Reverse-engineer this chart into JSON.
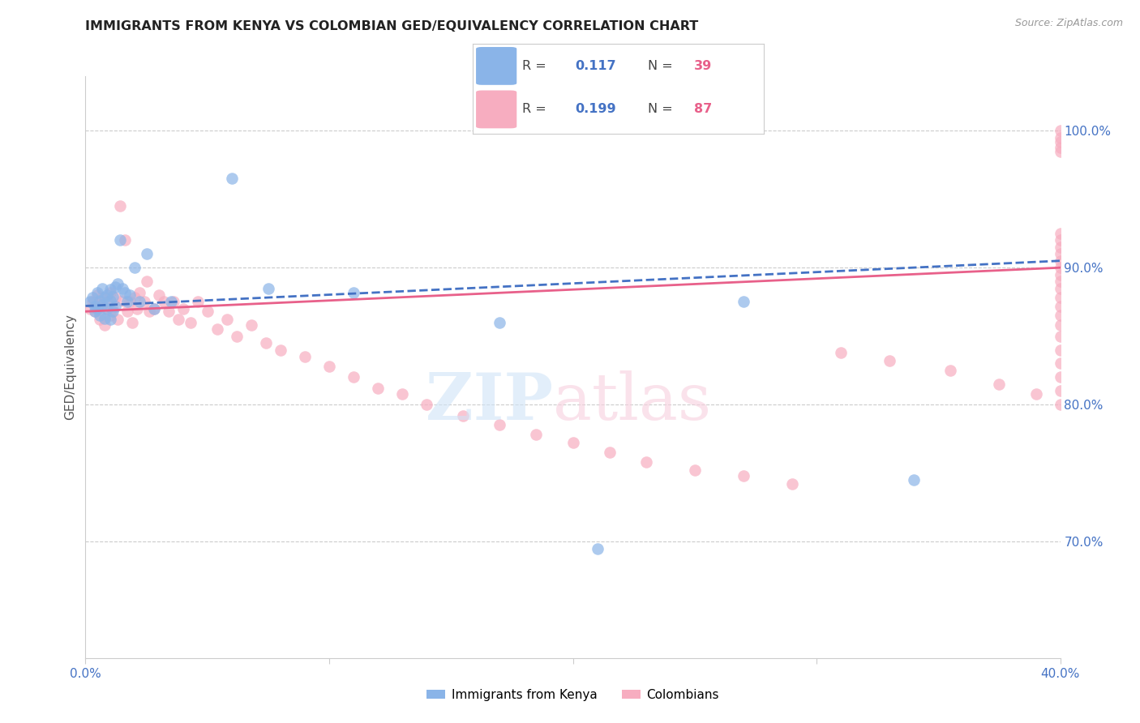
{
  "title": "IMMIGRANTS FROM KENYA VS COLOMBIAN GED/EQUIVALENCY CORRELATION CHART",
  "source": "Source: ZipAtlas.com",
  "ylabel": "GED/Equivalency",
  "right_yticks": [
    "100.0%",
    "90.0%",
    "80.0%",
    "70.0%"
  ],
  "right_ytick_vals": [
    1.0,
    0.9,
    0.8,
    0.7
  ],
  "xlim": [
    0.0,
    0.4
  ],
  "ylim": [
    0.615,
    1.04
  ],
  "kenya_color": "#8ab4e8",
  "colombia_color": "#f7adc0",
  "watermark_zip": "ZIP",
  "watermark_atlas": "atlas",
  "kenya_x": [
    0.002,
    0.003,
    0.004,
    0.004,
    0.005,
    0.005,
    0.006,
    0.006,
    0.007,
    0.007,
    0.008,
    0.008,
    0.009,
    0.009,
    0.01,
    0.01,
    0.01,
    0.011,
    0.011,
    0.012,
    0.012,
    0.013,
    0.014,
    0.015,
    0.016,
    0.017,
    0.018,
    0.02,
    0.022,
    0.025,
    0.028,
    0.035,
    0.06,
    0.075,
    0.11,
    0.17,
    0.21,
    0.27,
    0.34
  ],
  "kenya_y": [
    0.875,
    0.878,
    0.872,
    0.868,
    0.882,
    0.87,
    0.876,
    0.865,
    0.885,
    0.873,
    0.878,
    0.863,
    0.88,
    0.87,
    0.884,
    0.876,
    0.862,
    0.879,
    0.868,
    0.886,
    0.872,
    0.888,
    0.92,
    0.885,
    0.882,
    0.875,
    0.88,
    0.9,
    0.875,
    0.91,
    0.87,
    0.875,
    0.965,
    0.885,
    0.882,
    0.86,
    0.695,
    0.875,
    0.745
  ],
  "colombia_x": [
    0.002,
    0.003,
    0.004,
    0.005,
    0.006,
    0.006,
    0.007,
    0.008,
    0.008,
    0.009,
    0.01,
    0.01,
    0.011,
    0.012,
    0.013,
    0.014,
    0.015,
    0.016,
    0.017,
    0.018,
    0.019,
    0.02,
    0.021,
    0.022,
    0.024,
    0.025,
    0.026,
    0.028,
    0.03,
    0.032,
    0.034,
    0.036,
    0.038,
    0.04,
    0.043,
    0.046,
    0.05,
    0.054,
    0.058,
    0.062,
    0.068,
    0.074,
    0.08,
    0.09,
    0.1,
    0.11,
    0.12,
    0.13,
    0.14,
    0.155,
    0.17,
    0.185,
    0.2,
    0.215,
    0.23,
    0.25,
    0.27,
    0.29,
    0.31,
    0.33,
    0.355,
    0.375,
    0.39,
    0.4,
    0.4,
    0.4,
    0.4,
    0.4,
    0.4,
    0.4,
    0.4,
    0.4,
    0.4,
    0.4,
    0.4,
    0.4,
    0.4,
    0.4,
    0.4,
    0.4,
    0.4,
    0.4,
    0.4,
    0.4,
    0.4,
    0.4,
    0.4
  ],
  "colombia_y": [
    0.87,
    0.875,
    0.868,
    0.88,
    0.873,
    0.862,
    0.878,
    0.87,
    0.858,
    0.875,
    0.882,
    0.865,
    0.87,
    0.878,
    0.862,
    0.945,
    0.876,
    0.92,
    0.868,
    0.875,
    0.86,
    0.878,
    0.87,
    0.882,
    0.875,
    0.89,
    0.868,
    0.87,
    0.88,
    0.875,
    0.868,
    0.875,
    0.862,
    0.87,
    0.86,
    0.875,
    0.868,
    0.855,
    0.862,
    0.85,
    0.858,
    0.845,
    0.84,
    0.835,
    0.828,
    0.82,
    0.812,
    0.808,
    0.8,
    0.792,
    0.785,
    0.778,
    0.772,
    0.765,
    0.758,
    0.752,
    0.748,
    0.742,
    0.838,
    0.832,
    0.825,
    0.815,
    0.808,
    0.8,
    0.81,
    0.82,
    0.83,
    0.84,
    0.85,
    0.858,
    0.865,
    0.872,
    0.878,
    0.885,
    0.89,
    0.895,
    0.9,
    0.905,
    0.91,
    0.915,
    0.92,
    0.925,
    0.995,
    0.992,
    0.988,
    0.985,
    1.0
  ],
  "kenya_trend_x": [
    0.0,
    0.4
  ],
  "kenya_trend_y": [
    0.872,
    0.905
  ],
  "colombia_trend_x": [
    0.0,
    0.4
  ],
  "colombia_trend_y": [
    0.868,
    0.9
  ]
}
